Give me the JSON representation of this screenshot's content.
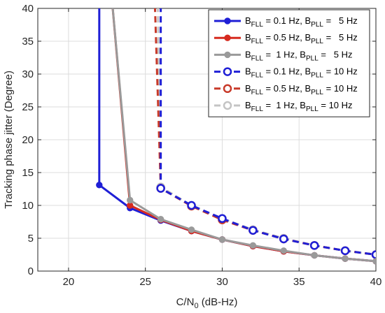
{
  "chart_data": {
    "type": "line",
    "xlabel": "C/N",
    "xlabel_sub": "0",
    "xlabel_unit": " (dB-Hz)",
    "ylabel": "Tracking phase jitter (Degree)",
    "xlim": [
      18,
      40
    ],
    "ylim": [
      0,
      40
    ],
    "xticks": [
      20,
      25,
      30,
      35,
      40
    ],
    "yticks": [
      0,
      5,
      10,
      15,
      20,
      25,
      30,
      35,
      40
    ],
    "grid": true,
    "legend_position": "top-right",
    "series": [
      {
        "name": "B_FLL = 0.1 Hz, B_PLL = 5 Hz",
        "legend": {
          "fll": "0.1",
          "pll": "5"
        },
        "color": "#1f1fd6",
        "style": "solid",
        "marker": "filled",
        "x": [
          22,
          24,
          26,
          28,
          30,
          32,
          34,
          36,
          38,
          40
        ],
        "y": [
          13.1,
          9.6,
          7.7,
          6.1,
          4.8,
          3.8,
          3.0,
          2.4,
          1.9,
          1.5
        ],
        "divergence": {
          "x_low": 22,
          "x_high": 22,
          "y": 13.1
        }
      },
      {
        "name": "B_FLL = 0.5 Hz, B_PLL = 5 Hz",
        "legend": {
          "fll": "0.5",
          "pll": "5"
        },
        "color": "#d62a1f",
        "style": "solid",
        "marker": "filled",
        "x": [
          24,
          26,
          28,
          30,
          32,
          34,
          36,
          38,
          40
        ],
        "y": [
          10.0,
          7.8,
          6.1,
          4.8,
          3.8,
          3.0,
          2.4,
          1.9,
          1.5
        ],
        "divergence": {
          "x_low": 22.8,
          "x_high": 24,
          "y": 10.0
        }
      },
      {
        "name": "B_FLL = 1 Hz, B_PLL = 5 Hz",
        "legend": {
          "fll": "1",
          "pll": "5"
        },
        "color": "#9a9a9a",
        "style": "solid",
        "marker": "filled",
        "x": [
          24,
          26,
          28,
          30,
          32,
          34,
          36,
          38,
          40
        ],
        "y": [
          10.8,
          7.9,
          6.3,
          4.8,
          3.9,
          3.1,
          2.4,
          1.9,
          1.5
        ],
        "divergence": {
          "x_low": 22.8,
          "x_high": 24,
          "y": 10.8
        }
      },
      {
        "name": "B_FLL = 0.1 Hz, B_PLL = 10 Hz",
        "legend": {
          "fll": "0.1",
          "pll": "10"
        },
        "color": "#1f1fd6",
        "style": "dashed",
        "marker": "open",
        "x": [
          26,
          28,
          30,
          32,
          34,
          36,
          38,
          40
        ],
        "y": [
          12.6,
          10.0,
          8.0,
          6.2,
          4.9,
          3.9,
          3.1,
          2.5
        ],
        "divergence": {
          "x_low": 26,
          "x_high": 26,
          "y": 12.6
        }
      },
      {
        "name": "B_FLL = 0.5 Hz, B_PLL = 10 Hz",
        "legend": {
          "fll": "0.5",
          "pll": "10"
        },
        "color": "#c83a2a",
        "style": "dashed",
        "marker": "open",
        "x": [
          26,
          28,
          30,
          32,
          34,
          36,
          38,
          40
        ],
        "y": [
          12.6,
          9.9,
          7.8,
          6.2,
          4.9,
          3.9,
          3.1,
          2.5
        ],
        "divergence": {
          "x_low": 25.6,
          "x_high": 26,
          "y": 12.6
        }
      },
      {
        "name": "B_FLL = 1 Hz, B_PLL = 10 Hz",
        "legend": {
          "fll": "1",
          "pll": "10"
        },
        "color": "#c4c4c4",
        "style": "dashed",
        "marker": "open",
        "x": [
          26,
          28,
          30,
          32,
          34,
          36,
          38,
          40
        ],
        "y": [
          12.8,
          10.0,
          8.0,
          6.3,
          5.0,
          3.9,
          3.1,
          2.5
        ],
        "divergence": {
          "x_low": 25.8,
          "x_high": 26,
          "y": 12.8
        }
      }
    ]
  },
  "legend_labels": {
    "b": "B",
    "fll_sub": "FLL",
    "pll_sub": "PLL",
    "hz": "Hz",
    "eq": "="
  }
}
